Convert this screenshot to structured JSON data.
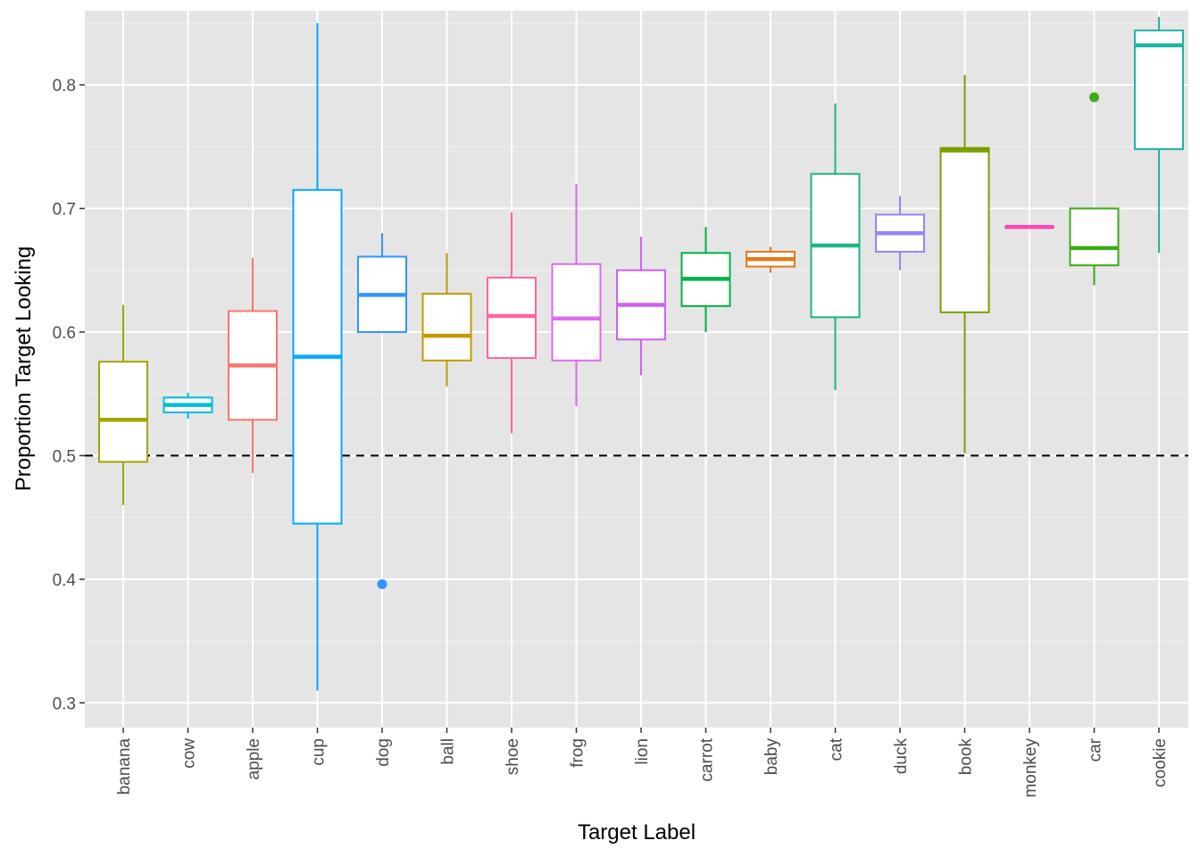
{
  "chart_data": {
    "type": "box",
    "xlabel": "Target Label",
    "ylabel": "Proportion Target Looking",
    "ylim": [
      0.28,
      0.86
    ],
    "yticks": [
      0.3,
      0.4,
      0.5,
      0.6,
      0.7,
      0.8
    ],
    "ytick_labels": [
      "0.3",
      "0.4",
      "0.5",
      "0.6",
      "0.7",
      "0.8"
    ],
    "reference_line": {
      "y": 0.5,
      "style": "dashed",
      "color": "#000000"
    },
    "grid": true,
    "legend": "none",
    "categories": [
      "banana",
      "cow",
      "apple",
      "cup",
      "dog",
      "ball",
      "shoe",
      "frog",
      "lion",
      "carrot",
      "baby",
      "cat",
      "duck",
      "book",
      "monkey",
      "car",
      "cookie"
    ],
    "boxes": [
      {
        "label": "banana",
        "color": "#A3A500",
        "whisker_low": 0.46,
        "q1": 0.495,
        "median": 0.529,
        "q3": 0.576,
        "whisker_high": 0.622,
        "outliers": []
      },
      {
        "label": "cow",
        "color": "#00BCD8",
        "whisker_low": 0.53,
        "q1": 0.535,
        "median": 0.541,
        "q3": 0.547,
        "whisker_high": 0.551,
        "outliers": []
      },
      {
        "label": "apple",
        "color": "#F8766D",
        "whisker_low": 0.486,
        "q1": 0.529,
        "median": 0.573,
        "q3": 0.617,
        "whisker_high": 0.66,
        "outliers": []
      },
      {
        "label": "cup",
        "color": "#00A9FF",
        "whisker_low": 0.31,
        "q1": 0.445,
        "median": 0.58,
        "q3": 0.715,
        "whisker_high": 0.85,
        "outliers": []
      },
      {
        "label": "dog",
        "color": "#3594FF",
        "whisker_low": 0.6,
        "q1": 0.6,
        "median": 0.63,
        "q3": 0.661,
        "whisker_high": 0.68,
        "outliers": [
          0.396
        ]
      },
      {
        "label": "ball",
        "color": "#C49A00",
        "whisker_low": 0.556,
        "q1": 0.577,
        "median": 0.597,
        "q3": 0.631,
        "whisker_high": 0.664,
        "outliers": []
      },
      {
        "label": "shoe",
        "color": "#FF6699",
        "whisker_low": 0.518,
        "q1": 0.579,
        "median": 0.613,
        "q3": 0.644,
        "whisker_high": 0.697,
        "outliers": []
      },
      {
        "label": "frog",
        "color": "#DD6BF0",
        "whisker_low": 0.54,
        "q1": 0.577,
        "median": 0.611,
        "q3": 0.655,
        "whisker_high": 0.72,
        "outliers": []
      },
      {
        "label": "lion",
        "color": "#D060F0",
        "whisker_low": 0.565,
        "q1": 0.594,
        "median": 0.622,
        "q3": 0.65,
        "whisker_high": 0.677,
        "outliers": []
      },
      {
        "label": "carrot",
        "color": "#00B248",
        "whisker_low": 0.6,
        "q1": 0.621,
        "median": 0.643,
        "q3": 0.664,
        "whisker_high": 0.685,
        "outliers": []
      },
      {
        "label": "baby",
        "color": "#E07B1A",
        "whisker_low": 0.648,
        "q1": 0.653,
        "median": 0.659,
        "q3": 0.665,
        "whisker_high": 0.669,
        "outliers": []
      },
      {
        "label": "cat",
        "color": "#1CB68A",
        "whisker_low": 0.553,
        "q1": 0.612,
        "median": 0.67,
        "q3": 0.728,
        "whisker_high": 0.785,
        "outliers": []
      },
      {
        "label": "duck",
        "color": "#9A83F6",
        "whisker_low": 0.65,
        "q1": 0.665,
        "median": 0.68,
        "q3": 0.695,
        "whisker_high": 0.71,
        "outliers": []
      },
      {
        "label": "book",
        "color": "#7AA000",
        "whisker_low": 0.502,
        "q1": 0.616,
        "median": 0.747,
        "q3": 0.749,
        "whisker_high": 0.808,
        "outliers": []
      },
      {
        "label": "monkey",
        "color": "#FF47B3",
        "whisker_low": 0.685,
        "q1": 0.685,
        "median": 0.685,
        "q3": 0.685,
        "whisker_high": 0.685,
        "outliers": []
      },
      {
        "label": "car",
        "color": "#3CAB15",
        "whisker_low": 0.638,
        "q1": 0.654,
        "median": 0.668,
        "q3": 0.7,
        "whisker_high": 0.7,
        "outliers": [
          0.79
        ]
      },
      {
        "label": "cookie",
        "color": "#1DB5A5",
        "whisker_low": 0.664,
        "q1": 0.748,
        "median": 0.832,
        "q3": 0.844,
        "whisker_high": 0.855,
        "outliers": []
      }
    ]
  }
}
